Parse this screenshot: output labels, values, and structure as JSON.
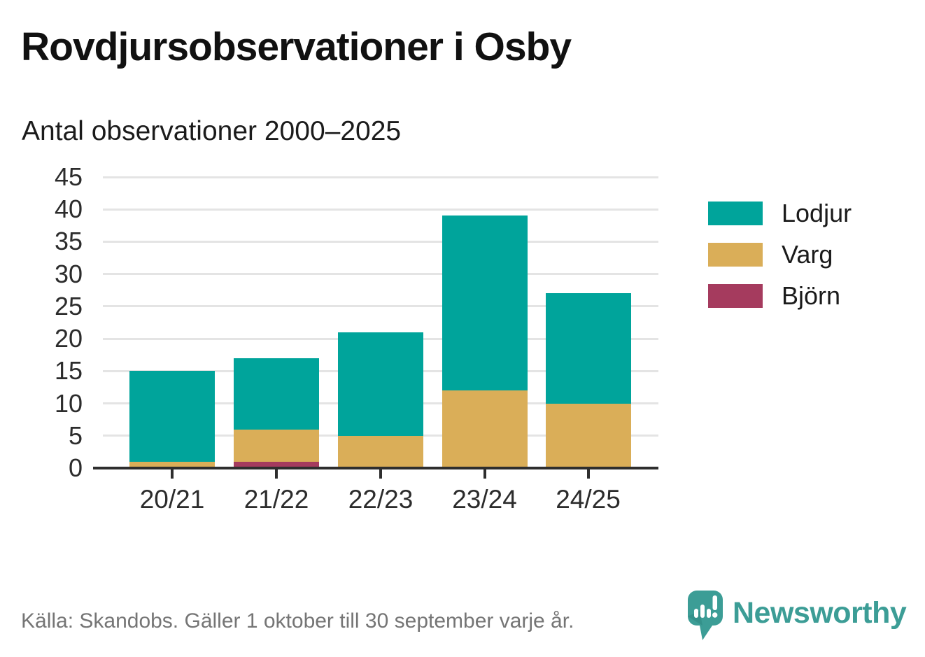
{
  "title": "Rovdjursobservationer i Osby",
  "subtitle": "Antal observationer 2000–2025",
  "footer": {
    "source": "Källa: Skandobs. Gäller 1 oktober till 30 september varje år."
  },
  "logo": {
    "text": "Newsworthy"
  },
  "colors": {
    "lodjur": "#00a49b",
    "varg": "#daae58",
    "bjorn": "#a53b5e",
    "axis": "#2e2e2e",
    "grid": "#e4e4e4",
    "footer_text": "#757575",
    "logo_teal": "#3c9d96"
  },
  "chart_data": {
    "type": "bar",
    "stacked": true,
    "title": "Rovdjursobservationer i Osby",
    "subtitle": "Antal observationer 2000–2025",
    "categories": [
      "20/21",
      "21/22",
      "22/23",
      "23/24",
      "24/25"
    ],
    "series": [
      {
        "name": "Lodjur",
        "color": "#00a49b",
        "values": [
          14,
          11,
          16,
          27,
          17
        ]
      },
      {
        "name": "Varg",
        "color": "#daae58",
        "values": [
          1,
          5,
          5,
          12,
          10
        ]
      },
      {
        "name": "Björn",
        "color": "#a53b5e",
        "values": [
          0,
          1,
          0,
          0,
          0
        ]
      }
    ],
    "stack_order_bottom_to_top": [
      "Björn",
      "Varg",
      "Lodjur"
    ],
    "totals": [
      15,
      17,
      21,
      39,
      27
    ],
    "xlabel": "",
    "ylabel": "",
    "ylim": [
      0,
      45
    ],
    "yticks": [
      0,
      5,
      10,
      15,
      20,
      25,
      30,
      35,
      40,
      45
    ],
    "grid": true,
    "legend_position": "right"
  }
}
